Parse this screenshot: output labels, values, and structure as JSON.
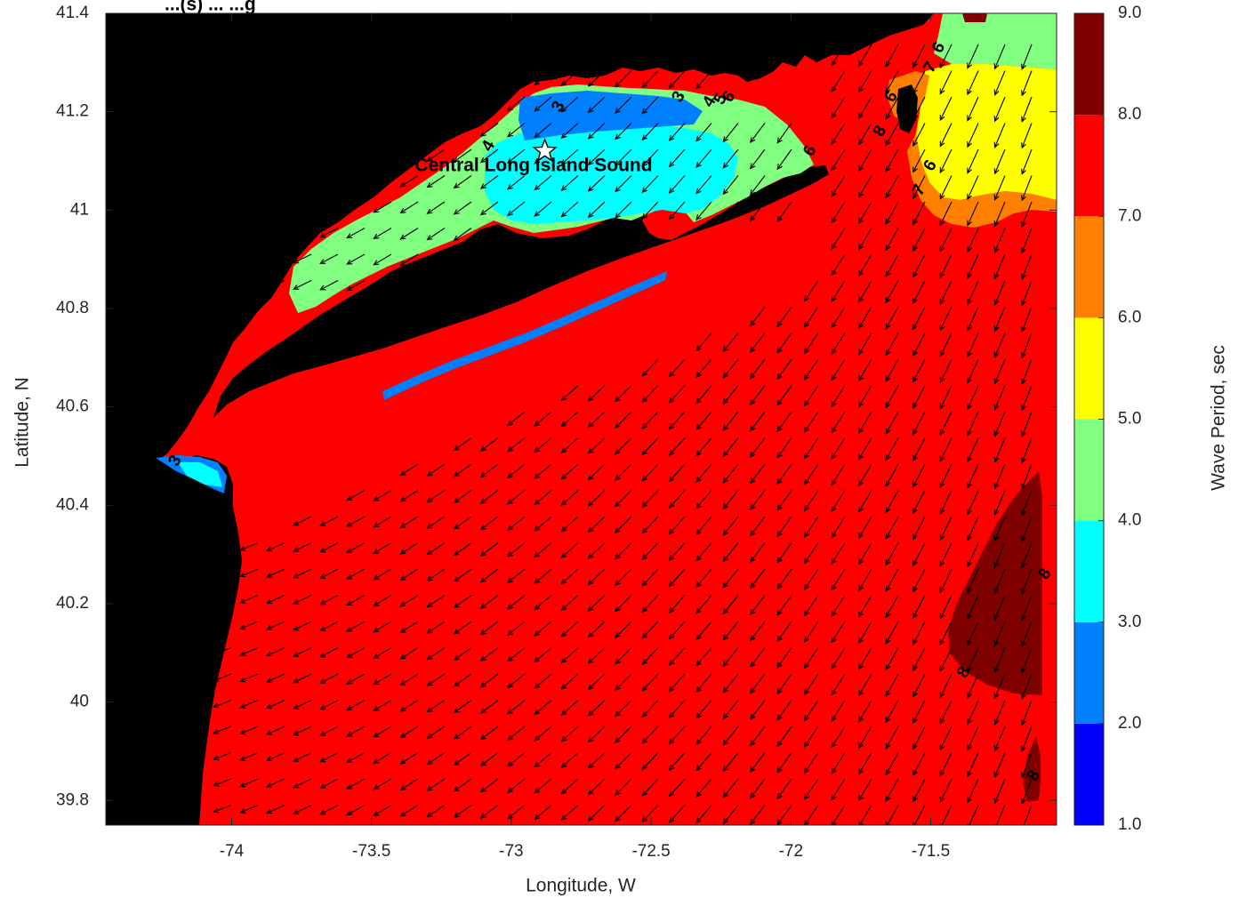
{
  "title": "...(s) ... ...g",
  "map": {
    "xlabel": "Longitude, W",
    "ylabel": "Latitude, N",
    "xlim": [
      -74.45,
      -71.05
    ],
    "ylim": [
      39.75,
      41.4
    ],
    "xticks": [
      -74,
      -73.5,
      -73,
      -72.5,
      -72,
      -71.5
    ],
    "xtick_labels": [
      "-74",
      "-73.5",
      "-73",
      "-72.5",
      "-72",
      "-71.5"
    ],
    "yticks": [
      39.8,
      40,
      40.2,
      40.4,
      40.6,
      40.8,
      41,
      41.2,
      41.4
    ],
    "ytick_labels": [
      "39.8",
      "40",
      "40.2",
      "40.4",
      "40.6",
      "40.8",
      "41",
      "41.2",
      "41.4"
    ],
    "place_label": "Central Long Island Sound",
    "station_marker": {
      "lon": -72.88,
      "lat": 41.12,
      "symbol": "star"
    },
    "land_color": "#000000",
    "arrow_color": "#000000",
    "contour_labels": [
      {
        "text": "3",
        "lon": -72.83,
        "lat": 41.21
      },
      {
        "text": "3",
        "lon": -72.4,
        "lat": 41.23
      },
      {
        "text": "4",
        "lon": -72.29,
        "lat": 41.22
      },
      {
        "text": "5",
        "lon": -72.25,
        "lat": 41.225
      },
      {
        "text": "6",
        "lon": -72.22,
        "lat": 41.23
      },
      {
        "text": "4",
        "lon": -73.08,
        "lat": 41.13
      },
      {
        "text": "6",
        "lon": -71.93,
        "lat": 41.12
      },
      {
        "text": "6",
        "lon": -71.64,
        "lat": 41.23
      },
      {
        "text": "8",
        "lon": -71.68,
        "lat": 41.16
      },
      {
        "text": "6",
        "lon": -71.47,
        "lat": 41.33
      },
      {
        "text": "7",
        "lon": -71.5,
        "lat": 41.29
      },
      {
        "text": "6",
        "lon": -71.5,
        "lat": 41.09
      },
      {
        "text": "7",
        "lon": -71.54,
        "lat": 41.04
      },
      {
        "text": "3",
        "lon": -74.2,
        "lat": 40.49
      },
      {
        "text": "8",
        "lon": -71.09,
        "lat": 40.26
      },
      {
        "text": "8",
        "lon": -71.38,
        "lat": 40.06
      },
      {
        "text": "8",
        "lon": -71.13,
        "lat": 39.85
      }
    ]
  },
  "colorbar": {
    "label": "Wave Period, sec",
    "min": 1.0,
    "max": 9.0,
    "tick_labels": [
      "1.0",
      "2.0",
      "3.0",
      "4.0",
      "5.0",
      "6.0",
      "7.0",
      "8.0",
      "9.0"
    ],
    "bands": [
      {
        "from": 1,
        "to": 2,
        "color": "#0000ff"
      },
      {
        "from": 2,
        "to": 3,
        "color": "#0080ff"
      },
      {
        "from": 3,
        "to": 4,
        "color": "#00ffff"
      },
      {
        "from": 4,
        "to": 5,
        "color": "#80ff80"
      },
      {
        "from": 5,
        "to": 6,
        "color": "#ffff00"
      },
      {
        "from": 6,
        "to": 7,
        "color": "#ff8000"
      },
      {
        "from": 7,
        "to": 8,
        "color": "#ff0000"
      },
      {
        "from": 8,
        "to": 9,
        "color": "#800000"
      }
    ]
  }
}
